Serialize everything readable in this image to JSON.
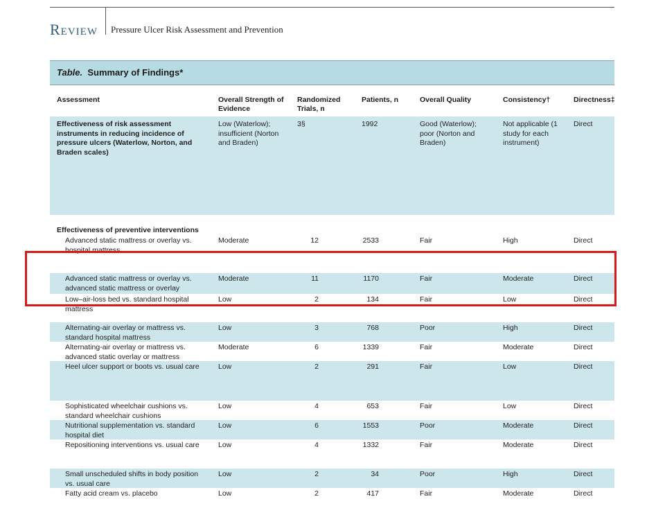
{
  "header": {
    "section": "Review",
    "subtitle": "Pressure Ulcer Risk Assessment and Prevention"
  },
  "table": {
    "label": "Table.",
    "title": "Summary of Findings*",
    "columns": [
      "Assessment",
      "Overall Strength of Evidence",
      "Randomized Trials, n",
      "Patients, n",
      "Overall Quality",
      "Consistency†",
      "Directness‡"
    ],
    "risk_assessment": {
      "assessment": "Effectiveness of risk assessment instruments in reducing incidence of pressure ulcers (Waterlow, Norton, and Braden scales)",
      "strength": "Low (Waterlow); insufficient (Norton and Braden)",
      "trials": "3§",
      "patients": "1992",
      "quality": "Good (Waterlow); poor (Norton and Braden)",
      "consistency": "Not applicable (1 study for each instrument)",
      "directness": "Direct"
    },
    "section_heading": "Effectiveness of preventive interventions",
    "rows": [
      {
        "assessment": "Advanced static mattress or overlay vs. hospital mattress",
        "strength": "Moderate",
        "trials": "12",
        "patients": "2533",
        "quality": "Fair",
        "consistency": "High",
        "directness": "Direct"
      },
      {
        "assessment": "Advanced static mattress or overlay vs. advanced static mattress or overlay",
        "strength": "Moderate",
        "trials": "11",
        "patients": "1170",
        "quality": "Fair",
        "consistency": "Moderate",
        "directness": "Direct"
      },
      {
        "assessment": "Low–air-loss bed vs. standard hospital mattress",
        "strength": "Low",
        "trials": "2",
        "patients": "134",
        "quality": "Fair",
        "consistency": "Low",
        "directness": "Direct"
      },
      {
        "assessment": "Alternating-air overlay or mattress vs. standard hospital mattress",
        "strength": "Low",
        "trials": "3",
        "patients": "768",
        "quality": "Poor",
        "consistency": "High",
        "directness": "Direct"
      },
      {
        "assessment": "Alternating-air overlay or mattress vs. advanced static overlay or mattress",
        "strength": "Moderate",
        "trials": "6",
        "patients": "1339",
        "quality": "Fair",
        "consistency": "Moderate",
        "directness": "Direct"
      },
      {
        "assessment": "Heel ulcer support or boots vs. usual care",
        "strength": "Low",
        "trials": "2",
        "patients": "291",
        "quality": "Fair",
        "consistency": "Low",
        "directness": "Direct"
      },
      {
        "assessment": "Sophisticated wheelchair cushions vs. standard wheelchair cushions",
        "strength": "Low",
        "trials": "4",
        "patients": "653",
        "quality": "Fair",
        "consistency": "Low",
        "directness": "Direct"
      },
      {
        "assessment": "Nutritional supplementation vs. standard hospital diet",
        "strength": "Low",
        "trials": "6",
        "patients": "1553",
        "quality": "Poor",
        "consistency": "Moderate",
        "directness": "Direct"
      },
      {
        "assessment": "Repositioning interventions vs. usual care",
        "strength": "Low",
        "trials": "4",
        "patients": "1332",
        "quality": "Fair",
        "consistency": "Moderate",
        "directness": "Direct"
      },
      {
        "assessment": "Small unscheduled shifts in body position vs. usual care",
        "strength": "Low",
        "trials": "2",
        "patients": "34",
        "quality": "Poor",
        "consistency": "High",
        "directness": "Direct"
      },
      {
        "assessment": "Fatty acid cream vs. placebo",
        "strength": "Low",
        "trials": "2",
        "patients": "417",
        "quality": "Fair",
        "consistency": "Moderate",
        "directness": "Direct"
      }
    ]
  },
  "colors": {
    "shade": "#cde6ec",
    "title_band": "#b7dbe3",
    "highlight": "#d81818"
  }
}
